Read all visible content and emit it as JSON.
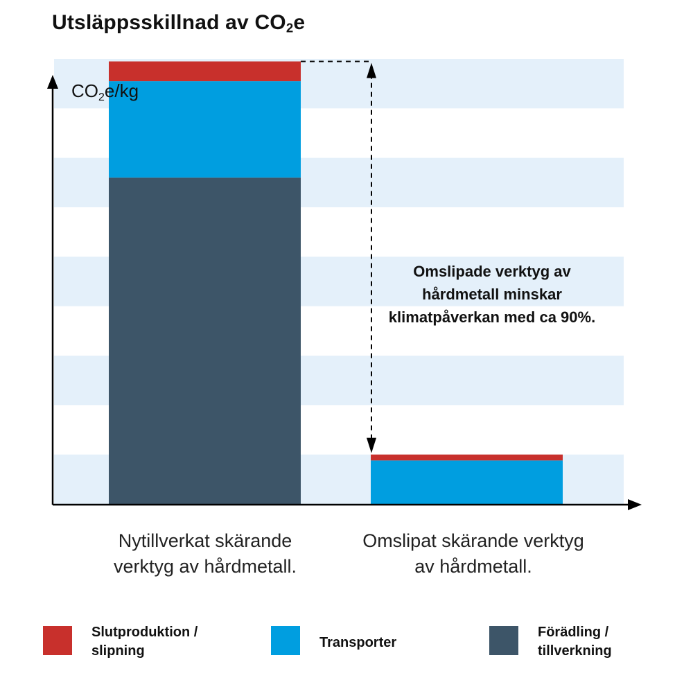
{
  "title": "Utsläppsskillnad av CO₂e",
  "chart_data": {
    "type": "bar",
    "stacked": true,
    "ylabel": "CO₂e/kg",
    "ylim": [
      0,
      9
    ],
    "grid": "alternating horizontal bands",
    "categories": [
      "Nytillverkat skärande verktyg av hårdmetall.",
      "Omslipat skärande verktyg av hårdmetall."
    ],
    "series": [
      {
        "name": "Förädling / tillverkning",
        "color": "#3d5568",
        "values": [
          6.6,
          0.0
        ]
      },
      {
        "name": "Transporter",
        "color": "#009ee0",
        "values": [
          1.95,
          0.88
        ]
      },
      {
        "name": "Slutproduktion / slipning",
        "color": "#c8302c",
        "values": [
          0.4,
          0.12
        ]
      }
    ],
    "annotation": "Omslipade verktyg av hårdmetall minskar klimatpåverkan med ca 90%."
  },
  "legend": [
    {
      "label": "Slutproduktion /\nslipning",
      "color": "#c8302c"
    },
    {
      "label": "Transporter",
      "color": "#009ee0"
    },
    {
      "label": "Förädling /\ntillverkning",
      "color": "#3d5568"
    }
  ]
}
